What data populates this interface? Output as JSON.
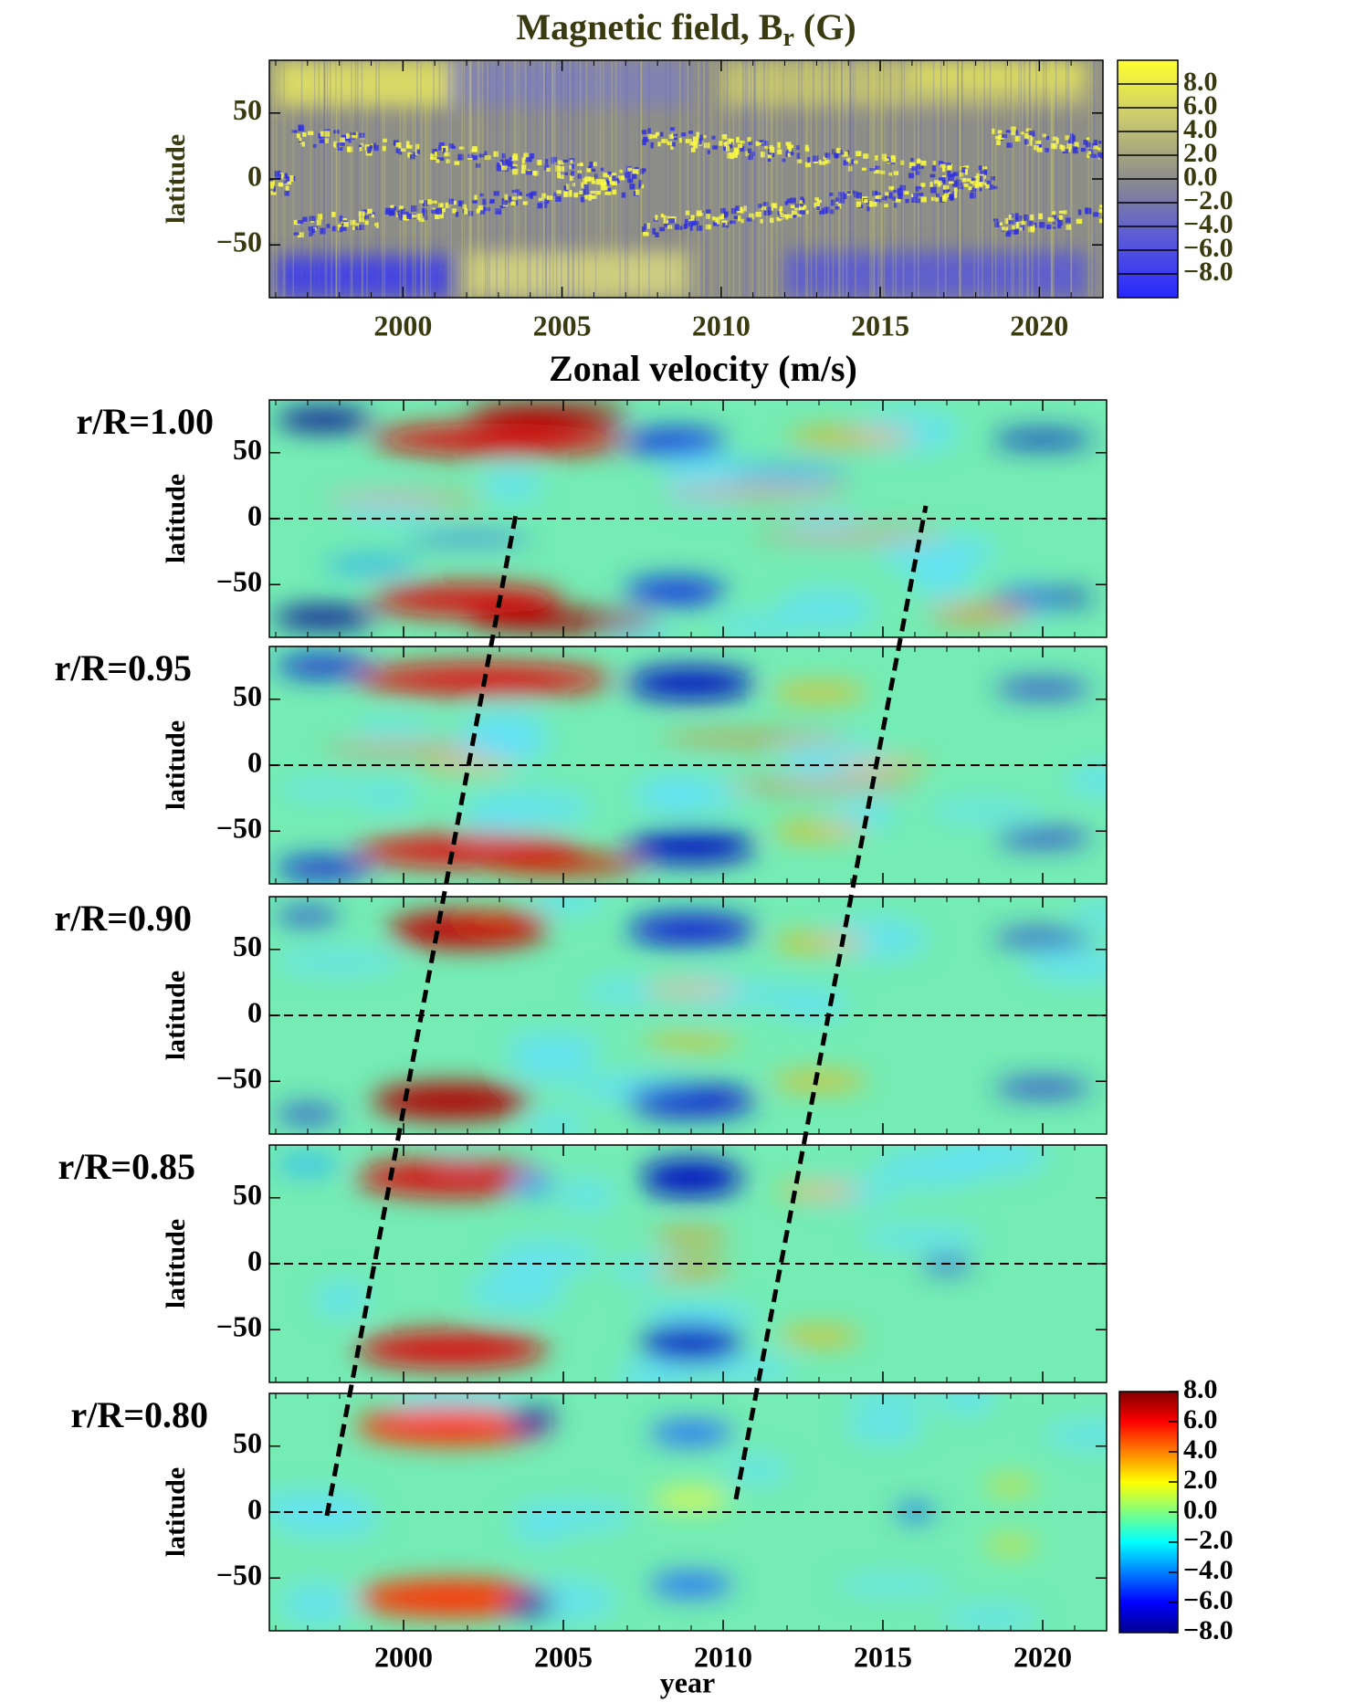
{
  "chart_data": [
    {
      "type": "heatmap",
      "title": "Magnetic field, B",
      "title_subscript": "r",
      "title_suffix": " (G)",
      "ylabel": "latitude",
      "xlim": [
        1995.8,
        2022
      ],
      "ylim": [
        -90,
        90
      ],
      "xticks": [
        2000,
        2005,
        2010,
        2015,
        2020
      ],
      "yticks": [
        {
          "value": -50,
          "label": "−50"
        },
        0,
        50
      ],
      "colorbar": {
        "lim": [
          -10,
          10
        ],
        "colors": [
          "#2828ff",
          "#5a5ad8",
          "#8c8c8c",
          "#c8c870",
          "#ffff30"
        ],
        "ticks": [
          {
            "value": 8,
            "label": "8.0"
          },
          {
            "value": 6,
            "label": "6.0"
          },
          {
            "value": 4,
            "label": "4.0"
          },
          {
            "value": 2,
            "label": "2.0"
          },
          {
            "value": 0,
            "label": "0.0"
          },
          {
            "value": -2,
            "label": "−2.0"
          },
          {
            "value": -4,
            "label": "−4.0"
          },
          {
            "value": -6,
            "label": "−6.0"
          },
          {
            "value": -8,
            "label": "−8.0"
          }
        ]
      }
    },
    {
      "type": "heatmap",
      "title": "Zonal velocity (m/s)",
      "xlabel": "year",
      "xlim": [
        1995.8,
        2022
      ],
      "xticks": [
        2000,
        2005,
        2010,
        2015,
        2020
      ],
      "colorbar": {
        "lim": [
          -8,
          8
        ],
        "colors": [
          "#00008f",
          "#0000ff",
          "#0080ff",
          "#00ffff",
          "#80ff80",
          "#ffff00",
          "#ff8000",
          "#ff0000",
          "#800000"
        ],
        "ticks": [
          {
            "value": 8,
            "label": "8.0"
          },
          {
            "value": 6,
            "label": "6.0"
          },
          {
            "value": 4,
            "label": "4.0"
          },
          {
            "value": 2,
            "label": "2.0"
          },
          {
            "value": 0,
            "label": "0.0"
          },
          {
            "value": -2,
            "label": "−2.0"
          },
          {
            "value": -4,
            "label": "−4.0"
          },
          {
            "value": -6,
            "label": "−6.0"
          },
          {
            "value": -8,
            "label": "−8.0"
          }
        ]
      },
      "panels": [
        {
          "label": "r/R=1.00",
          "ylabel": "latitude",
          "ylim": [
            -90,
            90
          ],
          "yticks": [
            {
              "value": -50,
              "label": "−50"
            },
            0,
            50
          ],
          "hline": 0
        },
        {
          "label": "r/R=0.95",
          "ylabel": "latitude",
          "ylim": [
            -90,
            90
          ],
          "yticks": [
            {
              "value": -50,
              "label": "−50"
            },
            0,
            50
          ],
          "hline": 0
        },
        {
          "label": "r/R=0.90",
          "ylabel": "latitude",
          "ylim": [
            -90,
            90
          ],
          "yticks": [
            {
              "value": -50,
              "label": "−50"
            },
            0,
            50
          ],
          "hline": 0
        },
        {
          "label": "r/R=0.85",
          "ylabel": "latitude",
          "ylim": [
            -90,
            90
          ],
          "yticks": [
            {
              "value": -50,
              "label": "−50"
            },
            0,
            50
          ],
          "hline": 0
        },
        {
          "label": "r/R=0.80",
          "ylabel": "latitude",
          "ylim": [
            -90,
            90
          ],
          "yticks": [
            {
              "value": -50,
              "label": "−50"
            },
            0,
            50
          ],
          "hline": 0
        }
      ]
    }
  ]
}
